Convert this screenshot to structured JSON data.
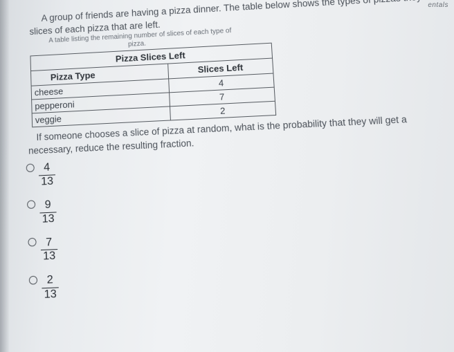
{
  "topCorner": "entals",
  "intro1": "A group of friends are having a pizza dinner. The table below shows the types of pizzas they are",
  "intro2": "slices of each pizza that are left.",
  "caption1": "A table listing the remaining number of slices of each type of",
  "caption2": "pizza.",
  "table": {
    "title": "Pizza Slices Left",
    "col1": "Pizza Type",
    "col2": "Slices Left",
    "rows": [
      {
        "type": "cheese",
        "slices": "4"
      },
      {
        "type": "pepperoni",
        "slices": "7"
      },
      {
        "type": "veggie",
        "slices": "2"
      }
    ]
  },
  "question1": "If someone chooses a slice of pizza at random, what is the probability that they will get a",
  "question2": "necessary, reduce the resulting fraction.",
  "options": [
    {
      "num": "4",
      "den": "13"
    },
    {
      "num": "9",
      "den": "13"
    },
    {
      "num": "7",
      "den": "13"
    },
    {
      "num": "2",
      "den": "13"
    }
  ],
  "colors": {
    "text": "#3a3f45",
    "border": "#555a60"
  }
}
